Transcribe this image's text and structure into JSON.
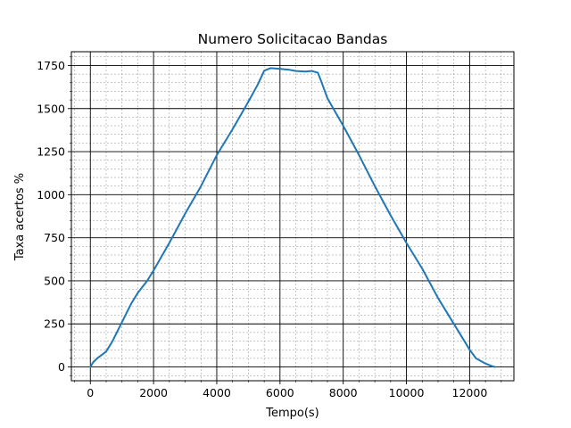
{
  "chart_data": {
    "type": "line",
    "title": "Numero Solicitacao Bandas",
    "xlabel": "Tempo(s)",
    "ylabel": "Taxa acertos %",
    "xlim": [
      -600,
      13400
    ],
    "ylim": [
      -80,
      1830
    ],
    "xticks": [
      0,
      2000,
      4000,
      6000,
      8000,
      10000,
      12000
    ],
    "xtick_labels": [
      "0",
      "2000",
      "4000",
      "6000",
      "8000",
      "10000",
      "12000"
    ],
    "yticks": [
      0,
      250,
      500,
      750,
      1000,
      1250,
      1500,
      1750
    ],
    "ytick_labels": [
      "0",
      "250",
      "500",
      "750",
      "1000",
      "1250",
      "1500",
      "1750"
    ],
    "x_minor_step": 500,
    "y_minor_step": 50,
    "grid": true,
    "minor_grid": true,
    "line_color": "#1f77b4",
    "series": [
      {
        "x": [
          0,
          100,
          250,
          400,
          500,
          700,
          1000,
          1300,
          1500,
          1800,
          2000,
          2500,
          3000,
          3500,
          4000,
          4500,
          5000,
          5300,
          5500,
          5700,
          6000,
          6300,
          6500,
          6800,
          7000,
          7200,
          7300,
          7500,
          8000,
          8500,
          9000,
          9500,
          10000,
          10500,
          11000,
          11500,
          12000,
          12200,
          12500,
          12700,
          12800
        ],
        "y": [
          0,
          30,
          55,
          75,
          90,
          150,
          260,
          370,
          430,
          500,
          560,
          720,
          890,
          1050,
          1230,
          1380,
          1540,
          1640,
          1720,
          1735,
          1730,
          1725,
          1718,
          1715,
          1718,
          1708,
          1660,
          1560,
          1400,
          1230,
          1050,
          880,
          720,
          570,
          400,
          250,
          100,
          50,
          20,
          5,
          0
        ]
      }
    ]
  }
}
